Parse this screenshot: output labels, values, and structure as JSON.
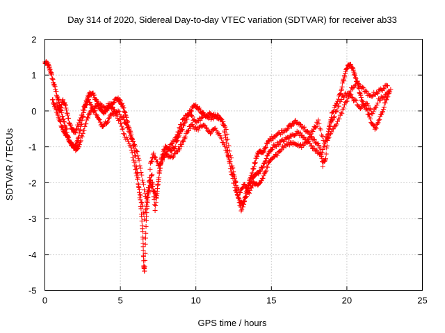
{
  "chart_data": {
    "type": "scatter",
    "title": "Day 314 of 2020, Sidereal Day-to-day VTEC variation (SDTVAR) for receiver ab33",
    "xlabel": "GPS time / hours",
    "ylabel": "SDTVAR / TECUs",
    "xlim": [
      0,
      25
    ],
    "ylim": [
      -5,
      2
    ],
    "xticks": [
      0,
      5,
      10,
      15,
      20,
      25
    ],
    "xtick_labels": [
      "0",
      "5",
      "10",
      "15",
      "20",
      "25"
    ],
    "yticks": [
      -5,
      -4,
      -3,
      -2,
      -1,
      0,
      1,
      2
    ],
    "ytick_labels": [
      "-5",
      "-4",
      "-3",
      "-2",
      "-1",
      "0",
      "1",
      "2"
    ],
    "grid": true,
    "marker": "+",
    "color": "#ff0000",
    "series": [
      {
        "name": "ab33",
        "tracks": [
          [
            [
              0.0,
              1.35
            ],
            [
              0.2,
              1.3
            ],
            [
              0.35,
              1.15
            ],
            [
              0.5,
              0.9
            ],
            [
              0.7,
              0.6
            ],
            [
              0.9,
              0.3
            ],
            [
              1.0,
              0.1
            ],
            [
              1.2,
              -0.2
            ],
            [
              1.4,
              -0.5
            ],
            [
              1.6,
              -0.8
            ],
            [
              1.8,
              -0.95
            ],
            [
              2.0,
              -1.0
            ],
            [
              2.2,
              -0.8
            ],
            [
              2.4,
              -0.4
            ],
            [
              2.6,
              0.0
            ],
            [
              2.8,
              0.35
            ],
            [
              3.0,
              0.5
            ],
            [
              3.2,
              0.45
            ],
            [
              3.4,
              0.3
            ],
            [
              3.6,
              0.1
            ],
            [
              3.8,
              0.0
            ],
            [
              4.0,
              -0.05
            ],
            [
              4.2,
              0.1
            ],
            [
              4.5,
              0.25
            ],
            [
              4.8,
              0.35
            ],
            [
              5.0,
              0.25
            ],
            [
              5.2,
              0.1
            ],
            [
              5.4,
              -0.2
            ],
            [
              5.6,
              -0.5
            ],
            [
              5.8,
              -0.8
            ],
            [
              6.0,
              -1.3
            ],
            [
              6.2,
              -2.0
            ],
            [
              6.4,
              -2.9
            ],
            [
              6.5,
              -3.6
            ],
            [
              6.55,
              -4.3
            ],
            [
              6.6,
              -4.5
            ],
            [
              6.7,
              -3.2
            ],
            [
              6.8,
              -2.4
            ],
            [
              7.0,
              -2.0
            ],
            [
              7.2,
              -2.2
            ],
            [
              7.4,
              -2.4
            ],
            [
              7.6,
              -1.6
            ],
            [
              7.8,
              -1.2
            ],
            [
              8.0,
              -1.0
            ],
            [
              8.3,
              -1.1
            ],
            [
              8.6,
              -1.0
            ],
            [
              8.9,
              -0.7
            ],
            [
              9.2,
              -0.4
            ],
            [
              9.5,
              -0.1
            ],
            [
              9.8,
              0.1
            ],
            [
              10.0,
              0.15
            ],
            [
              10.3,
              0.0
            ],
            [
              10.6,
              -0.1
            ],
            [
              11.0,
              -0.2
            ],
            [
              11.4,
              -0.15
            ],
            [
              11.8,
              -0.3
            ],
            [
              12.0,
              -0.8
            ],
            [
              12.2,
              -1.4
            ],
            [
              12.5,
              -2.0
            ],
            [
              12.8,
              -2.4
            ],
            [
              13.0,
              -2.6
            ],
            [
              13.2,
              -2.5
            ],
            [
              13.4,
              -2.2
            ],
            [
              13.6,
              -1.9
            ],
            [
              13.8,
              -1.6
            ],
            [
              14.0,
              -1.3
            ],
            [
              14.2,
              -1.1
            ],
            [
              14.4,
              -1.2
            ],
            [
              14.6,
              -1.0
            ],
            [
              14.9,
              -0.8
            ],
            [
              15.2,
              -0.7
            ],
            [
              15.6,
              -0.6
            ],
            [
              16.0,
              -0.5
            ],
            [
              16.3,
              -0.4
            ],
            [
              16.6,
              -0.3
            ],
            [
              17.0,
              -0.4
            ],
            [
              17.4,
              -0.6
            ],
            [
              17.8,
              -0.8
            ],
            [
              18.2,
              -1.0
            ],
            [
              18.4,
              -1.5
            ],
            [
              18.6,
              -1.3
            ],
            [
              18.8,
              -0.5
            ],
            [
              19.0,
              -0.1
            ],
            [
              19.3,
              0.2
            ],
            [
              19.6,
              0.5
            ],
            [
              19.8,
              0.9
            ],
            [
              20.0,
              1.2
            ],
            [
              20.2,
              1.3
            ],
            [
              20.4,
              1.15
            ],
            [
              20.6,
              0.9
            ],
            [
              20.8,
              0.6
            ],
            [
              21.0,
              0.3
            ],
            [
              21.3,
              0.05
            ],
            [
              21.6,
              -0.3
            ],
            [
              21.9,
              -0.5
            ],
            [
              22.2,
              -0.2
            ],
            [
              22.5,
              0.2
            ],
            [
              22.8,
              0.5
            ]
          ],
          [
            [
              0.5,
              0.3
            ],
            [
              0.7,
              0.1
            ],
            [
              0.9,
              -0.2
            ],
            [
              1.1,
              -0.4
            ],
            [
              1.3,
              -0.6
            ],
            [
              1.5,
              -0.7
            ],
            [
              1.7,
              -0.9
            ],
            [
              1.9,
              -1.0
            ],
            [
              2.1,
              -1.1
            ],
            [
              2.3,
              -0.9
            ],
            [
              2.6,
              -0.5
            ],
            [
              2.9,
              -0.1
            ],
            [
              3.2,
              0.1
            ],
            [
              3.5,
              -0.2
            ],
            [
              3.8,
              -0.4
            ],
            [
              4.1,
              -0.3
            ],
            [
              4.4,
              -0.1
            ],
            [
              4.8,
              0.0
            ],
            [
              5.2,
              -0.2
            ],
            [
              5.5,
              -0.5
            ],
            [
              5.9,
              -0.9
            ],
            [
              6.2,
              -1.3
            ],
            [
              6.5,
              -2.0
            ],
            [
              6.8,
              -2.6
            ],
            [
              7.0,
              -1.5
            ],
            [
              7.2,
              -1.2
            ],
            [
              7.5,
              -1.5
            ],
            [
              7.9,
              -1.3
            ],
            [
              8.2,
              -1.0
            ],
            [
              8.6,
              -0.8
            ],
            [
              8.9,
              -0.5
            ],
            [
              9.2,
              -0.2
            ],
            [
              9.6,
              -0.1
            ],
            [
              10.0,
              -0.3
            ],
            [
              10.4,
              -0.2
            ],
            [
              10.8,
              -0.1
            ],
            [
              11.2,
              -0.1
            ],
            [
              11.6,
              -0.2
            ],
            [
              12.0,
              -0.5
            ],
            [
              12.4,
              -1.5
            ],
            [
              12.7,
              -2.2
            ],
            [
              13.0,
              -2.8
            ],
            [
              13.3,
              -2.4
            ],
            [
              13.6,
              -2.0
            ],
            [
              13.9,
              -1.8
            ],
            [
              14.2,
              -1.7
            ],
            [
              14.5,
              -1.5
            ],
            [
              14.8,
              -1.2
            ],
            [
              15.1,
              -1.0
            ],
            [
              15.5,
              -0.9
            ],
            [
              15.9,
              -0.8
            ],
            [
              16.3,
              -0.7
            ],
            [
              16.7,
              -0.6
            ],
            [
              17.1,
              -0.7
            ],
            [
              17.5,
              -0.9
            ],
            [
              17.9,
              -1.1
            ],
            [
              18.3,
              -1.2
            ],
            [
              18.7,
              -0.8
            ],
            [
              19.1,
              -0.5
            ],
            [
              19.5,
              -0.2
            ],
            [
              19.9,
              0.2
            ],
            [
              20.3,
              0.6
            ],
            [
              20.7,
              0.8
            ],
            [
              21.1,
              0.6
            ],
            [
              21.5,
              0.4
            ],
            [
              21.9,
              0.5
            ],
            [
              22.3,
              0.6
            ],
            [
              22.7,
              0.7
            ]
          ],
          [
            [
              0.8,
              0.2
            ],
            [
              1.0,
              0.0
            ],
            [
              1.2,
              0.3
            ],
            [
              1.4,
              0.1
            ],
            [
              1.6,
              -0.3
            ],
            [
              1.8,
              -0.5
            ],
            [
              2.0,
              -0.6
            ],
            [
              2.3,
              -0.3
            ],
            [
              2.6,
              0.1
            ],
            [
              2.9,
              0.3
            ],
            [
              3.2,
              0.0
            ],
            [
              3.5,
              0.2
            ],
            [
              3.9,
              0.1
            ],
            [
              4.3,
              0.2
            ],
            [
              4.6,
              0.0
            ],
            [
              5.0,
              -0.3
            ],
            [
              5.3,
              -0.7
            ],
            [
              5.7,
              -1.0
            ],
            [
              6.0,
              -1.6
            ],
            [
              6.3,
              -2.3
            ],
            [
              6.6,
              -3.0
            ],
            [
              6.9,
              -2.0
            ],
            [
              7.1,
              -1.8
            ],
            [
              7.3,
              -2.8
            ],
            [
              7.5,
              -2.0
            ],
            [
              7.7,
              -1.4
            ],
            [
              8.0,
              -1.2
            ],
            [
              8.4,
              -1.3
            ],
            [
              8.8,
              -1.1
            ],
            [
              9.1,
              -0.9
            ],
            [
              9.4,
              -0.6
            ],
            [
              9.7,
              -0.4
            ],
            [
              10.1,
              -0.5
            ],
            [
              10.5,
              -0.4
            ],
            [
              10.9,
              -0.6
            ],
            [
              11.3,
              -0.5
            ],
            [
              11.7,
              -0.8
            ],
            [
              12.1,
              -1.2
            ],
            [
              12.5,
              -1.8
            ],
            [
              12.9,
              -2.3
            ],
            [
              13.2,
              -2.0
            ],
            [
              13.5,
              -2.3
            ],
            [
              13.8,
              -2.0
            ],
            [
              14.1,
              -2.1
            ],
            [
              14.4,
              -1.9
            ],
            [
              14.7,
              -1.6
            ],
            [
              15.0,
              -1.3
            ],
            [
              15.4,
              -1.2
            ],
            [
              15.8,
              -1.0
            ],
            [
              16.2,
              -0.9
            ],
            [
              16.6,
              -0.9
            ],
            [
              17.0,
              -1.0
            ],
            [
              17.4,
              -0.8
            ],
            [
              17.8,
              -0.5
            ],
            [
              18.1,
              -0.3
            ],
            [
              18.5,
              -0.9
            ],
            [
              18.9,
              -0.4
            ],
            [
              19.3,
              0.0
            ],
            [
              19.7,
              0.4
            ],
            [
              20.1,
              0.5
            ],
            [
              20.5,
              0.3
            ],
            [
              20.9,
              0.1
            ],
            [
              21.3,
              0.2
            ],
            [
              21.7,
              -0.1
            ],
            [
              22.1,
              0.3
            ],
            [
              22.5,
              0.4
            ],
            [
              22.9,
              0.6
            ]
          ]
        ]
      }
    ]
  }
}
